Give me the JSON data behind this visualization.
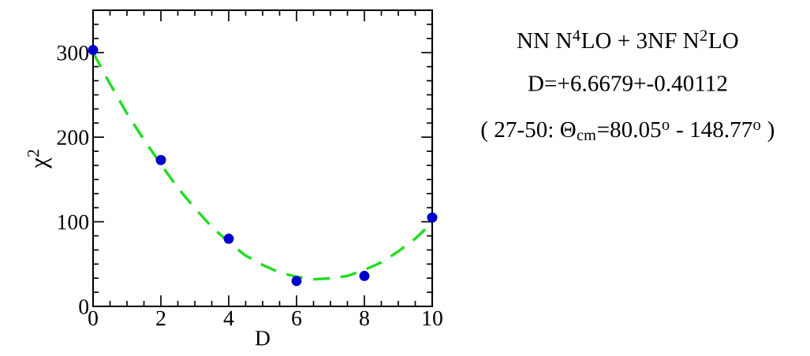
{
  "chart_data": {
    "type": "scatter",
    "xlabel": "D",
    "ylabel": "χ$^{2}$",
    "xlim": [
      0,
      10
    ],
    "xticks": [
      0,
      2,
      4,
      6,
      8,
      10
    ],
    "ylim": [
      0,
      350
    ],
    "yticks": [
      0,
      100,
      200,
      300
    ],
    "grid": false,
    "legend": false,
    "series": [
      {
        "color": "#0000cc",
        "marker": "circle",
        "x": [
          0,
          2,
          4,
          6,
          8,
          10
        ],
        "values": [
          303,
          173,
          80,
          30,
          36,
          105
        ]
      },
      {
        "type": "line",
        "color": "#22dd22",
        "line_style": "dashed",
        "marker": "none",
        "x": [
          0,
          0.5,
          1,
          1.5,
          2,
          2.5,
          3,
          3.5,
          4,
          4.5,
          5,
          5.5,
          6,
          6.5,
          7,
          7.5,
          8,
          8.5,
          9,
          9.5,
          10
        ],
        "values": [
          300,
          263,
          228,
          197,
          168,
          140,
          116,
          94,
          76,
          60,
          49,
          40,
          35,
          32,
          33,
          36,
          43,
          52,
          65,
          80,
          99
        ]
      }
    ],
    "annotations": [
      "NN N$^{4}$LO + 3NF N$^{2}$LO",
      "D=+6.6679+-0.40112",
      "( 27-50: Θ$_{cm}$=80.05$^{o}$ - 148.77$^{o}$ )"
    ]
  }
}
